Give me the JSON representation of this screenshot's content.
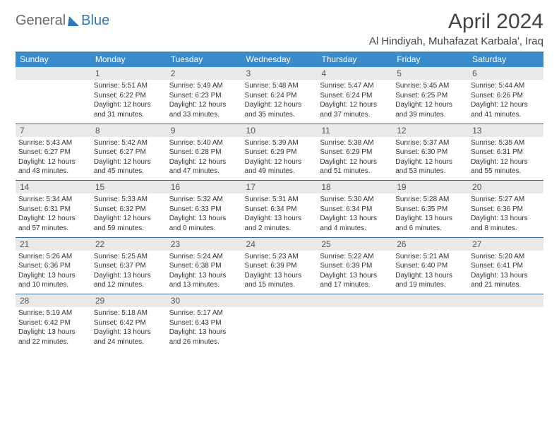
{
  "logo": {
    "part1": "General",
    "part2": "Blue"
  },
  "title": "April 2024",
  "location": "Al Hindiyah, Muhafazat Karbala', Iraq",
  "weekdays": [
    "Sunday",
    "Monday",
    "Tuesday",
    "Wednesday",
    "Thursday",
    "Friday",
    "Saturday"
  ],
  "colors": {
    "header_bg": "#3a8bc9",
    "header_text": "#ffffff",
    "daynum_bg": "#e9e9e9",
    "row_divider": "#3a6b94",
    "logo_gray": "#6b6b6b",
    "logo_blue": "#2f78b7",
    "body_text": "#333333",
    "page_bg": "#ffffff"
  },
  "typography": {
    "month_title_pt": 30,
    "location_pt": 15,
    "weekday_pt": 12,
    "daynum_pt": 12,
    "cell_pt": 10,
    "logo_pt": 20
  },
  "layout": {
    "columns": 7,
    "rows": 5,
    "start_weekday": 1
  },
  "days": [
    {
      "n": "1",
      "sunrise": "5:51 AM",
      "sunset": "6:22 PM",
      "daylight": "12 hours and 31 minutes."
    },
    {
      "n": "2",
      "sunrise": "5:49 AM",
      "sunset": "6:23 PM",
      "daylight": "12 hours and 33 minutes."
    },
    {
      "n": "3",
      "sunrise": "5:48 AM",
      "sunset": "6:24 PM",
      "daylight": "12 hours and 35 minutes."
    },
    {
      "n": "4",
      "sunrise": "5:47 AM",
      "sunset": "6:24 PM",
      "daylight": "12 hours and 37 minutes."
    },
    {
      "n": "5",
      "sunrise": "5:45 AM",
      "sunset": "6:25 PM",
      "daylight": "12 hours and 39 minutes."
    },
    {
      "n": "6",
      "sunrise": "5:44 AM",
      "sunset": "6:26 PM",
      "daylight": "12 hours and 41 minutes."
    },
    {
      "n": "7",
      "sunrise": "5:43 AM",
      "sunset": "6:27 PM",
      "daylight": "12 hours and 43 minutes."
    },
    {
      "n": "8",
      "sunrise": "5:42 AM",
      "sunset": "6:27 PM",
      "daylight": "12 hours and 45 minutes."
    },
    {
      "n": "9",
      "sunrise": "5:40 AM",
      "sunset": "6:28 PM",
      "daylight": "12 hours and 47 minutes."
    },
    {
      "n": "10",
      "sunrise": "5:39 AM",
      "sunset": "6:29 PM",
      "daylight": "12 hours and 49 minutes."
    },
    {
      "n": "11",
      "sunrise": "5:38 AM",
      "sunset": "6:29 PM",
      "daylight": "12 hours and 51 minutes."
    },
    {
      "n": "12",
      "sunrise": "5:37 AM",
      "sunset": "6:30 PM",
      "daylight": "12 hours and 53 minutes."
    },
    {
      "n": "13",
      "sunrise": "5:35 AM",
      "sunset": "6:31 PM",
      "daylight": "12 hours and 55 minutes."
    },
    {
      "n": "14",
      "sunrise": "5:34 AM",
      "sunset": "6:31 PM",
      "daylight": "12 hours and 57 minutes."
    },
    {
      "n": "15",
      "sunrise": "5:33 AM",
      "sunset": "6:32 PM",
      "daylight": "12 hours and 59 minutes."
    },
    {
      "n": "16",
      "sunrise": "5:32 AM",
      "sunset": "6:33 PM",
      "daylight": "13 hours and 0 minutes."
    },
    {
      "n": "17",
      "sunrise": "5:31 AM",
      "sunset": "6:34 PM",
      "daylight": "13 hours and 2 minutes."
    },
    {
      "n": "18",
      "sunrise": "5:30 AM",
      "sunset": "6:34 PM",
      "daylight": "13 hours and 4 minutes."
    },
    {
      "n": "19",
      "sunrise": "5:28 AM",
      "sunset": "6:35 PM",
      "daylight": "13 hours and 6 minutes."
    },
    {
      "n": "20",
      "sunrise": "5:27 AM",
      "sunset": "6:36 PM",
      "daylight": "13 hours and 8 minutes."
    },
    {
      "n": "21",
      "sunrise": "5:26 AM",
      "sunset": "6:36 PM",
      "daylight": "13 hours and 10 minutes."
    },
    {
      "n": "22",
      "sunrise": "5:25 AM",
      "sunset": "6:37 PM",
      "daylight": "13 hours and 12 minutes."
    },
    {
      "n": "23",
      "sunrise": "5:24 AM",
      "sunset": "6:38 PM",
      "daylight": "13 hours and 13 minutes."
    },
    {
      "n": "24",
      "sunrise": "5:23 AM",
      "sunset": "6:39 PM",
      "daylight": "13 hours and 15 minutes."
    },
    {
      "n": "25",
      "sunrise": "5:22 AM",
      "sunset": "6:39 PM",
      "daylight": "13 hours and 17 minutes."
    },
    {
      "n": "26",
      "sunrise": "5:21 AM",
      "sunset": "6:40 PM",
      "daylight": "13 hours and 19 minutes."
    },
    {
      "n": "27",
      "sunrise": "5:20 AM",
      "sunset": "6:41 PM",
      "daylight": "13 hours and 21 minutes."
    },
    {
      "n": "28",
      "sunrise": "5:19 AM",
      "sunset": "6:42 PM",
      "daylight": "13 hours and 22 minutes."
    },
    {
      "n": "29",
      "sunrise": "5:18 AM",
      "sunset": "6:42 PM",
      "daylight": "13 hours and 24 minutes."
    },
    {
      "n": "30",
      "sunrise": "5:17 AM",
      "sunset": "6:43 PM",
      "daylight": "13 hours and 26 minutes."
    }
  ],
  "labels": {
    "sunrise": "Sunrise:",
    "sunset": "Sunset:",
    "daylight": "Daylight:"
  }
}
